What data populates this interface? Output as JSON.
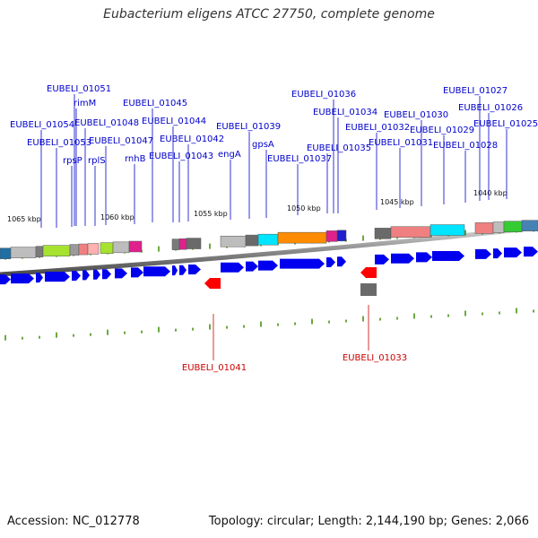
{
  "title": "Eubacterium eligens ATCC 27750, complete genome",
  "footer": {
    "accession": "Accession: NC_012778",
    "topology": "Topology: circular; Length: 2,144,190 bp; Genes: 2,066"
  },
  "colors": {
    "gene_forward": "#0000ee",
    "gene_reverse": "#ff0000",
    "label_forward": "#0000cc",
    "label_reverse": "#cc0000",
    "tick": "#3a8a00"
  },
  "kbp_labels": [
    "1065 kbp",
    "1060 kbp",
    "1055 kbp",
    "1050 kbp",
    "1045 kbp",
    "1040 kbp"
  ],
  "forward_labels": [
    "EUBELI_01051",
    "rimM",
    "EUBELI_01048",
    "EUBELI_01054",
    "EUBELI_01053",
    "rpsP",
    "rplS",
    "EUBELI_01047",
    "rnhB",
    "EUBELI_01045",
    "EUBELI_01044",
    "EUBELI_01042",
    "EUBELI_01043",
    "EUBELI_01039",
    "engA",
    "gpsA",
    "EUBELI_01036",
    "EUBELI_01034",
    "EUBELI_01035",
    "EUBELI_01037",
    "EUBELI_01032",
    "EUBELI_01031",
    "EUBELI_01030",
    "EUBELI_01029",
    "EUBELI_01027",
    "EUBELI_01026",
    "EUBELI_01025",
    "EUBELI_01028"
  ],
  "reverse_labels": [
    "EUBELI_01041",
    "EUBELI_01033"
  ]
}
